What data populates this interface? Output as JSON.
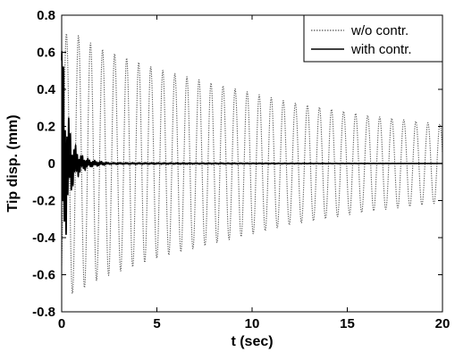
{
  "chart_data": {
    "type": "line",
    "xlabel": "t (sec)",
    "ylabel": "Tip disp. (mm)",
    "xlim": [
      0,
      20
    ],
    "ylim": [
      -0.8,
      0.8
    ],
    "x_ticks": [
      0,
      5,
      10,
      15,
      20
    ],
    "x_tick_labels": [
      "0",
      "5",
      "10",
      "15",
      "20"
    ],
    "y_ticks": [
      -0.8,
      -0.6,
      -0.4,
      -0.2,
      0,
      0.2,
      0.4,
      0.6,
      0.8
    ],
    "y_tick_labels": [
      "-0.8",
      "-0.6",
      "-0.4",
      "-0.2",
      "0",
      "0.2",
      "0.4",
      "0.6",
      "0.8"
    ],
    "grid": false,
    "legend_position": "top-right",
    "series": [
      {
        "name": "w/o contr.",
        "style": "dotted",
        "color": "#555555",
        "frequency_hz": 1.58,
        "peak_envelope": {
          "t": [
            0.7,
            2.0,
            5.0,
            8.0,
            12.0,
            16.0,
            20.0
          ],
          "amplitude": [
            0.7,
            0.62,
            0.51,
            0.43,
            0.33,
            0.26,
            0.21
          ]
        }
      },
      {
        "name": "with contr.",
        "style": "solid",
        "color": "#000000",
        "peak_envelope": {
          "t": [
            0.0,
            0.1,
            0.3,
            0.6,
            1.0,
            1.5,
            2.5,
            20.0
          ],
          "amplitude": [
            0.75,
            0.55,
            0.3,
            0.12,
            0.05,
            0.02,
            0.005,
            0.0
          ]
        }
      }
    ]
  }
}
